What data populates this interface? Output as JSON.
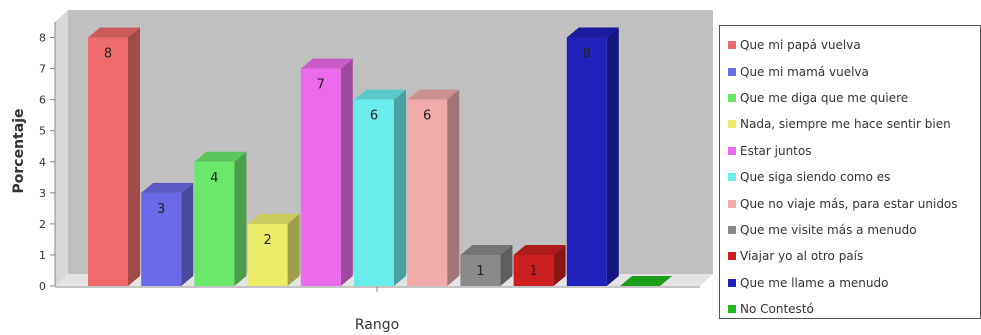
{
  "chart_data": {
    "type": "bar",
    "title": "",
    "xlabel": "Rango",
    "ylabel": "Porcentaje",
    "ylim": [
      0,
      8.5
    ],
    "yticks": [
      0,
      1,
      2,
      3,
      4,
      5,
      6,
      7,
      8
    ],
    "grid": false,
    "legend_position": "right",
    "series": [
      {
        "name": "Que mi papá vuelva",
        "value": 8,
        "color": "#ee6b6b"
      },
      {
        "name": "Que mi mamá vuelva",
        "value": 3,
        "color": "#6b6be8"
      },
      {
        "name": "Que me diga que me quiere",
        "value": 4,
        "color": "#6be86b"
      },
      {
        "name": "Nada, siempre me hace sentir bien",
        "value": 2,
        "color": "#ecec6b"
      },
      {
        "name": "Estar juntos",
        "value": 7,
        "color": "#ec6bec"
      },
      {
        "name": "Que siga siendo como es",
        "value": 6,
        "color": "#6becec"
      },
      {
        "name": "Que no viaje más, para estar unidos",
        "value": 6,
        "color": "#f0aaaa"
      },
      {
        "name": "Que me visite más a menudo",
        "value": 1,
        "color": "#8a8a8a"
      },
      {
        "name": "Viajar yo al otro país",
        "value": 1,
        "color": "#cc2020"
      },
      {
        "name": "Que me llame a menudo",
        "value": 8,
        "color": "#2020bb"
      },
      {
        "name": "No Contestó",
        "value": 0,
        "color": "#20bb20"
      }
    ],
    "data_labels": [
      "8",
      "3",
      "4",
      "2",
      "7",
      "6",
      "6",
      "1",
      "1",
      "8",
      ""
    ]
  }
}
